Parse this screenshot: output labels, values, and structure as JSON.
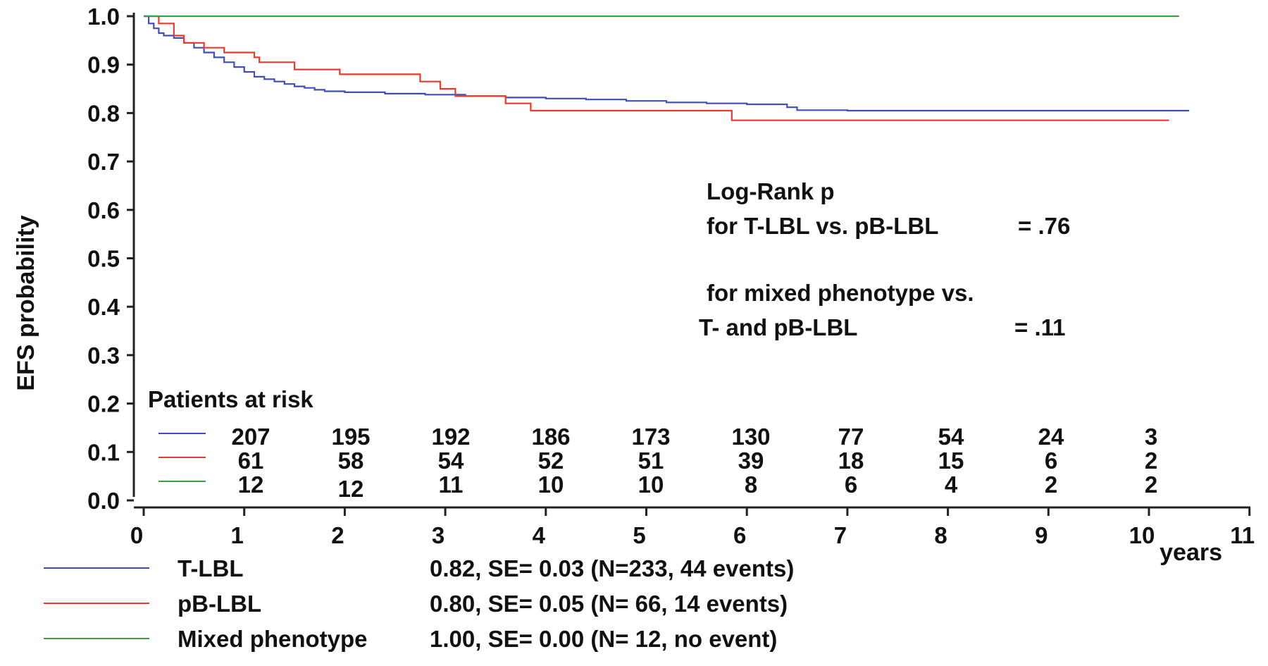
{
  "chart_data": {
    "type": "line",
    "title": "",
    "xlabel": "years",
    "ylabel": "EFS probability",
    "xlim": [
      0,
      11
    ],
    "ylim": [
      0,
      1
    ],
    "x_ticks": [
      "0",
      "1",
      "2",
      "3",
      "4",
      "5",
      "6",
      "7",
      "8",
      "9",
      "10",
      "11"
    ],
    "y_ticks": [
      "0.0",
      "0.1",
      "0.2",
      "0.3",
      "0.4",
      "0.5",
      "0.6",
      "0.7",
      "0.8",
      "0.9",
      "1.0"
    ],
    "series": [
      {
        "name": "T-LBL",
        "color": "#3f4fb5",
        "points": [
          [
            0,
            1.0
          ],
          [
            0.05,
            0.985
          ],
          [
            0.1,
            0.975
          ],
          [
            0.15,
            0.965
          ],
          [
            0.2,
            0.96
          ],
          [
            0.3,
            0.955
          ],
          [
            0.4,
            0.945
          ],
          [
            0.5,
            0.935
          ],
          [
            0.6,
            0.925
          ],
          [
            0.7,
            0.915
          ],
          [
            0.8,
            0.905
          ],
          [
            0.9,
            0.895
          ],
          [
            1.0,
            0.885
          ],
          [
            1.1,
            0.875
          ],
          [
            1.2,
            0.87
          ],
          [
            1.3,
            0.865
          ],
          [
            1.4,
            0.86
          ],
          [
            1.5,
            0.855
          ],
          [
            1.6,
            0.852
          ],
          [
            1.7,
            0.848
          ],
          [
            1.8,
            0.845
          ],
          [
            2.0,
            0.843
          ],
          [
            2.4,
            0.84
          ],
          [
            2.8,
            0.838
          ],
          [
            3.2,
            0.835
          ],
          [
            3.6,
            0.832
          ],
          [
            4.0,
            0.83
          ],
          [
            4.4,
            0.828
          ],
          [
            4.8,
            0.825
          ],
          [
            5.2,
            0.822
          ],
          [
            5.6,
            0.82
          ],
          [
            6.0,
            0.818
          ],
          [
            6.4,
            0.812
          ],
          [
            6.5,
            0.806
          ],
          [
            7.0,
            0.805
          ],
          [
            8.0,
            0.805
          ],
          [
            9.0,
            0.805
          ],
          [
            10.0,
            0.805
          ],
          [
            10.4,
            0.805
          ]
        ],
        "summary": "0.82, SE= 0.03 (N=233, 44 events)"
      },
      {
        "name": "pB-LBL",
        "color": "#e83a2e",
        "points": [
          [
            0,
            1.0
          ],
          [
            0.15,
            0.985
          ],
          [
            0.3,
            0.96
          ],
          [
            0.4,
            0.945
          ],
          [
            0.6,
            0.935
          ],
          [
            0.8,
            0.925
          ],
          [
            1.1,
            0.915
          ],
          [
            1.15,
            0.905
          ],
          [
            1.4,
            0.905
          ],
          [
            1.5,
            0.89
          ],
          [
            1.9,
            0.89
          ],
          [
            1.95,
            0.88
          ],
          [
            2.7,
            0.88
          ],
          [
            2.75,
            0.865
          ],
          [
            2.9,
            0.865
          ],
          [
            2.95,
            0.85
          ],
          [
            3.05,
            0.85
          ],
          [
            3.1,
            0.835
          ],
          [
            3.55,
            0.835
          ],
          [
            3.6,
            0.82
          ],
          [
            3.8,
            0.82
          ],
          [
            3.85,
            0.805
          ],
          [
            5.8,
            0.805
          ],
          [
            5.85,
            0.785
          ],
          [
            10.2,
            0.785
          ]
        ],
        "summary": "0.80, SE= 0.05 (N= 66, 14 events)"
      },
      {
        "name": "Mixed phenotype",
        "color": "#3aa23a",
        "points": [
          [
            0,
            1.0
          ],
          [
            10.3,
            1.0
          ]
        ],
        "summary": "1.00, SE= 0.00 (N= 12, no event)"
      }
    ],
    "annotations": {
      "logrank_title": "Log-Rank p",
      "comparison_1": "for T-LBL vs. pB-LBL",
      "p_value_1": "= .76",
      "comparison_2a": "for mixed phenotype vs.",
      "comparison_2b": "T- and pB-LBL",
      "p_value_2": "= .11"
    },
    "patients_at_risk": {
      "title": "Patients at risk",
      "rows": [
        [
          "207",
          "195",
          "192",
          "186",
          "173",
          "130",
          "77",
          "54",
          "24",
          "3"
        ],
        [
          "61",
          "58",
          "54",
          "52",
          "51",
          "39",
          "18",
          "15",
          "6",
          "2"
        ],
        [
          "12",
          "12",
          "11",
          "10",
          "10",
          "8",
          "6",
          "4",
          "2",
          "2"
        ]
      ]
    }
  }
}
